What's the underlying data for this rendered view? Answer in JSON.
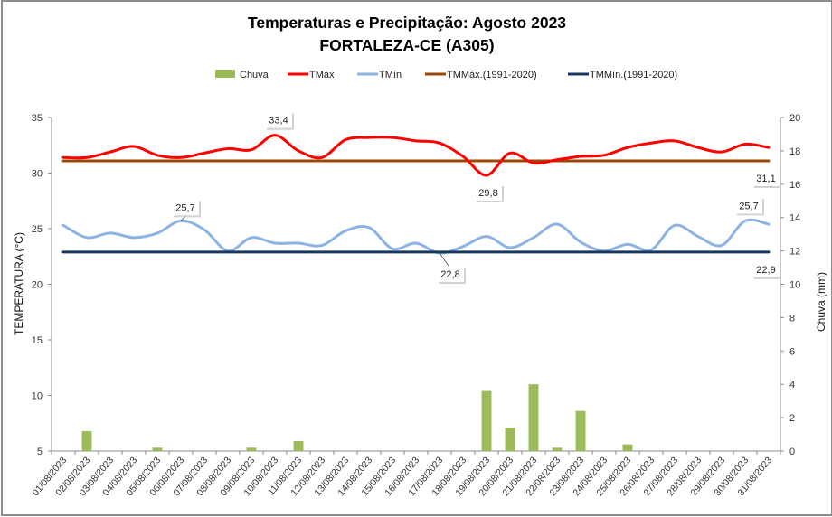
{
  "chart_data": {
    "type": "line",
    "title": "Temperaturas e Precipitação: Agosto 2023",
    "subtitle": "FORTALEZA-CE (A305)",
    "xlabel": "",
    "ylabel": "TEMPERATURA (°C)",
    "y2label": "Chuva (mm)",
    "ylim": [
      5,
      35
    ],
    "yticks": [
      "5",
      "10",
      "15",
      "20",
      "25",
      "30",
      "35"
    ],
    "y2lim": [
      0,
      20
    ],
    "y2ticks": [
      "0",
      "2",
      "4",
      "6",
      "8",
      "10",
      "12",
      "14",
      "16",
      "18",
      "20"
    ],
    "grid": false,
    "legend_position": "top",
    "categories": [
      "01/08/2023",
      "02/08/2023",
      "03/08/2023",
      "04/08/2023",
      "05/08/2023",
      "06/08/2023",
      "07/08/2023",
      "08/08/2023",
      "09/08/2023",
      "10/08/2023",
      "11/08/2023",
      "12/08/2023",
      "13/08/2023",
      "14/08/2023",
      "15/08/2023",
      "16/08/2023",
      "17/08/2023",
      "18/08/2023",
      "19/08/2023",
      "20/08/2023",
      "21/08/2023",
      "22/08/2023",
      "23/08/2023",
      "24/08/2023",
      "25/08/2023",
      "26/08/2023",
      "27/08/2023",
      "28/08/2023",
      "29/08/2023",
      "30/08/2023",
      "31/08/2023"
    ],
    "series": [
      {
        "name": "Chuva",
        "type": "bar",
        "axis": "right",
        "color": "#9bbb59",
        "values": [
          0,
          1.2,
          0,
          0,
          0.2,
          0,
          0,
          0,
          0.2,
          0,
          0.6,
          0,
          0,
          0,
          0,
          0,
          0,
          0,
          3.6,
          1.4,
          4.0,
          0.2,
          2.4,
          0,
          0.4,
          0,
          0,
          0,
          0,
          0,
          0
        ]
      },
      {
        "name": "TMáx",
        "type": "line",
        "axis": "left",
        "color": "#ff0000",
        "values": [
          31.4,
          31.4,
          31.9,
          32.4,
          31.6,
          31.4,
          31.8,
          32.2,
          32.1,
          33.4,
          32.0,
          31.4,
          33.0,
          33.2,
          33.2,
          32.9,
          32.7,
          31.5,
          29.8,
          31.8,
          30.9,
          31.2,
          31.5,
          31.6,
          32.3,
          32.7,
          32.9,
          32.3,
          31.9,
          32.6,
          32.3
        ]
      },
      {
        "name": "TMín",
        "type": "line",
        "axis": "left",
        "color": "#8db3e2",
        "values": [
          25.3,
          24.2,
          24.6,
          24.2,
          24.6,
          25.7,
          24.9,
          23.0,
          24.2,
          23.7,
          23.7,
          23.5,
          24.8,
          25.1,
          23.2,
          23.7,
          22.8,
          23.4,
          24.3,
          23.3,
          24.2,
          25.4,
          23.8,
          23.0,
          23.6,
          23.1,
          25.3,
          24.3,
          23.5,
          25.7,
          25.4
        ]
      },
      {
        "name": "TMMáx.(1991-2020)",
        "type": "line",
        "axis": "left",
        "color": "#984807",
        "values": [
          31.1,
          31.1,
          31.1,
          31.1,
          31.1,
          31.1,
          31.1,
          31.1,
          31.1,
          31.1,
          31.1,
          31.1,
          31.1,
          31.1,
          31.1,
          31.1,
          31.1,
          31.1,
          31.1,
          31.1,
          31.1,
          31.1,
          31.1,
          31.1,
          31.1,
          31.1,
          31.1,
          31.1,
          31.1,
          31.1,
          31.1
        ]
      },
      {
        "name": "TMMín.(1991-2020)",
        "type": "line",
        "axis": "left",
        "color": "#17375e",
        "values": [
          22.9,
          22.9,
          22.9,
          22.9,
          22.9,
          22.9,
          22.9,
          22.9,
          22.9,
          22.9,
          22.9,
          22.9,
          22.9,
          22.9,
          22.9,
          22.9,
          22.9,
          22.9,
          22.9,
          22.9,
          22.9,
          22.9,
          22.9,
          22.9,
          22.9,
          22.9,
          22.9,
          22.9,
          22.9,
          22.9,
          22.9
        ]
      }
    ],
    "annotations": [
      {
        "series": "TMáx",
        "day_index": 9,
        "text": "33,4",
        "placement": "above"
      },
      {
        "series": "TMáx",
        "day_index": 18,
        "text": "29,8",
        "placement": "below"
      },
      {
        "series": "TMMáx.(1991-2020)",
        "day_index": 30,
        "text": "31,1",
        "placement": "below"
      },
      {
        "series": "TMín",
        "day_index": 5,
        "text": "25,7",
        "placement": "above"
      },
      {
        "series": "TMín",
        "day_index": 16,
        "text": "22,8",
        "placement": "below"
      },
      {
        "series": "TMín",
        "day_index": 29,
        "text": "25,7",
        "placement": "above"
      },
      {
        "series": "TMMín.(1991-2020)",
        "day_index": 30,
        "text": "22,9",
        "placement": "below"
      }
    ]
  }
}
